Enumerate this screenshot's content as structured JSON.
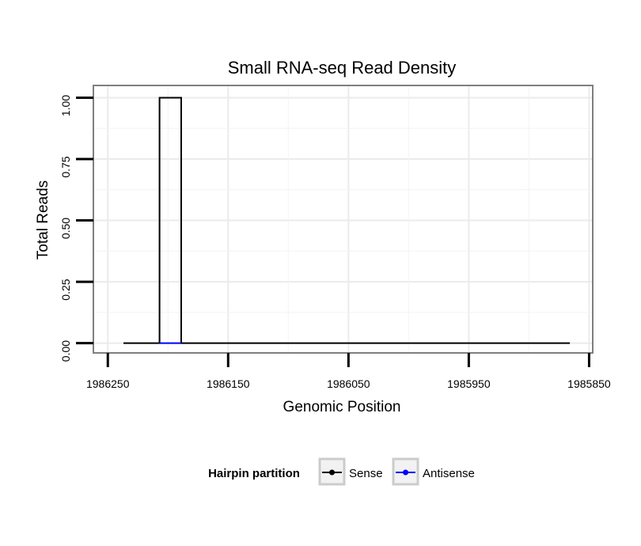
{
  "chart_data": {
    "type": "line",
    "title": "Small RNA-seq Read Density",
    "xlabel": "Genomic Position",
    "ylabel": "Total Reads",
    "x_reversed": true,
    "xlim": [
      1986262,
      1985847
    ],
    "ylim": [
      -0.04,
      1.05
    ],
    "x_ticks": [
      1986250,
      1986150,
      1986050,
      1985950,
      1985850
    ],
    "x_tick_labels": [
      "1986250",
      "1986150",
      "1986050",
      "1985950",
      "1985850"
    ],
    "y_ticks": [
      0,
      0.25,
      0.5,
      0.75,
      1
    ],
    "y_tick_labels": [
      "0.00",
      "0.25",
      "0.50",
      "0.75",
      "1.00"
    ],
    "grid": true,
    "legend": {
      "title": "Hairpin partition",
      "position": "bottom",
      "entries": [
        {
          "label": "Sense",
          "color": "#000000"
        },
        {
          "label": "Antisense",
          "color": "#0000ff"
        }
      ]
    },
    "series": [
      {
        "name": "Sense",
        "color": "#000000",
        "x": [
          1986237,
          1986207,
          1986207,
          1986189,
          1986189,
          1985866
        ],
        "y": [
          0,
          0,
          1,
          1,
          0,
          0
        ]
      },
      {
        "name": "Antisense",
        "color": "#0000ff",
        "x": [
          1986207,
          1986189
        ],
        "y": [
          0,
          0
        ]
      }
    ]
  }
}
